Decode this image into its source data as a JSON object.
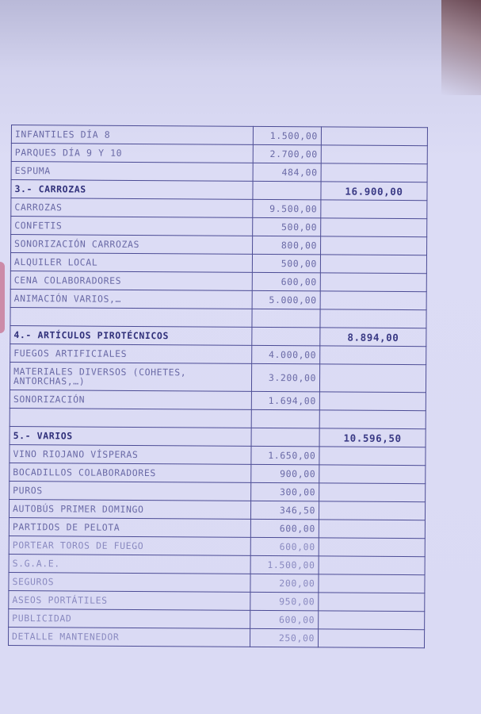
{
  "rows": [
    {
      "desc": "INFANTILES DÍA 8",
      "amount": "1.500,00",
      "total": ""
    },
    {
      "desc": "PARQUES DÍA 9 Y 10",
      "amount": "2.700,00",
      "total": ""
    },
    {
      "desc": "ESPUMA",
      "amount": "484,00",
      "total": ""
    },
    {
      "desc": "3.- CARROZAS",
      "amount": "",
      "total": "16.900,00",
      "header": true
    },
    {
      "desc": "CARROZAS",
      "amount": "9.500,00",
      "total": ""
    },
    {
      "desc": "CONFETIS",
      "amount": "500,00",
      "total": ""
    },
    {
      "desc": "SONORIZACIÓN CARROZAS",
      "amount": "800,00",
      "total": ""
    },
    {
      "desc": "ALQUILER LOCAL",
      "amount": "500,00",
      "total": ""
    },
    {
      "desc": "CENA COLABORADORES",
      "amount": "600,00",
      "total": ""
    },
    {
      "desc": "ANIMACIÓN VARIOS,…",
      "amount": "5.000,00",
      "total": ""
    },
    {
      "desc": "",
      "amount": "",
      "total": ""
    },
    {
      "desc": "4.- ARTÍCULOS PIROTÉCNICOS",
      "amount": "",
      "total": "8.894,00",
      "header": true
    },
    {
      "desc": "FUEGOS ARTIFICIALES",
      "amount": "4.000,00",
      "total": ""
    },
    {
      "desc": "MATERIALES DIVERSOS (COHETES, ANTORCHAS,…)",
      "amount": "3.200,00",
      "total": "",
      "multi": true
    },
    {
      "desc": "SONORIZACIÓN",
      "amount": "1.694,00",
      "total": ""
    },
    {
      "desc": "",
      "amount": "",
      "total": ""
    },
    {
      "desc": "5.- VARIOS",
      "amount": "",
      "total": "10.596,50",
      "header": true
    },
    {
      "desc": "VINO RIOJANO VÍSPERAS",
      "amount": "1.650,00",
      "total": ""
    },
    {
      "desc": "BOCADILLOS COLABORADORES",
      "amount": "900,00",
      "total": ""
    },
    {
      "desc": "PUROS",
      "amount": "300,00",
      "total": ""
    },
    {
      "desc": "AUTOBÚS PRIMER DOMINGO",
      "amount": "346,50",
      "total": ""
    },
    {
      "desc": "PARTIDOS DE PELOTA",
      "amount": "600,00",
      "total": ""
    },
    {
      "desc": "PORTEAR TOROS DE FUEGO",
      "amount": "600,00",
      "total": ""
    },
    {
      "desc": "S.G.A.E.",
      "amount": "1.500,00",
      "total": ""
    },
    {
      "desc": "SEGUROS",
      "amount": "200,00",
      "total": ""
    },
    {
      "desc": "ASEOS PORTÁTILES",
      "amount": "950,00",
      "total": ""
    },
    {
      "desc": "PUBLICIDAD",
      "amount": "600,00",
      "total": ""
    },
    {
      "desc": "DETALLE MANTENEDOR",
      "amount": "250,00",
      "total": ""
    }
  ]
}
